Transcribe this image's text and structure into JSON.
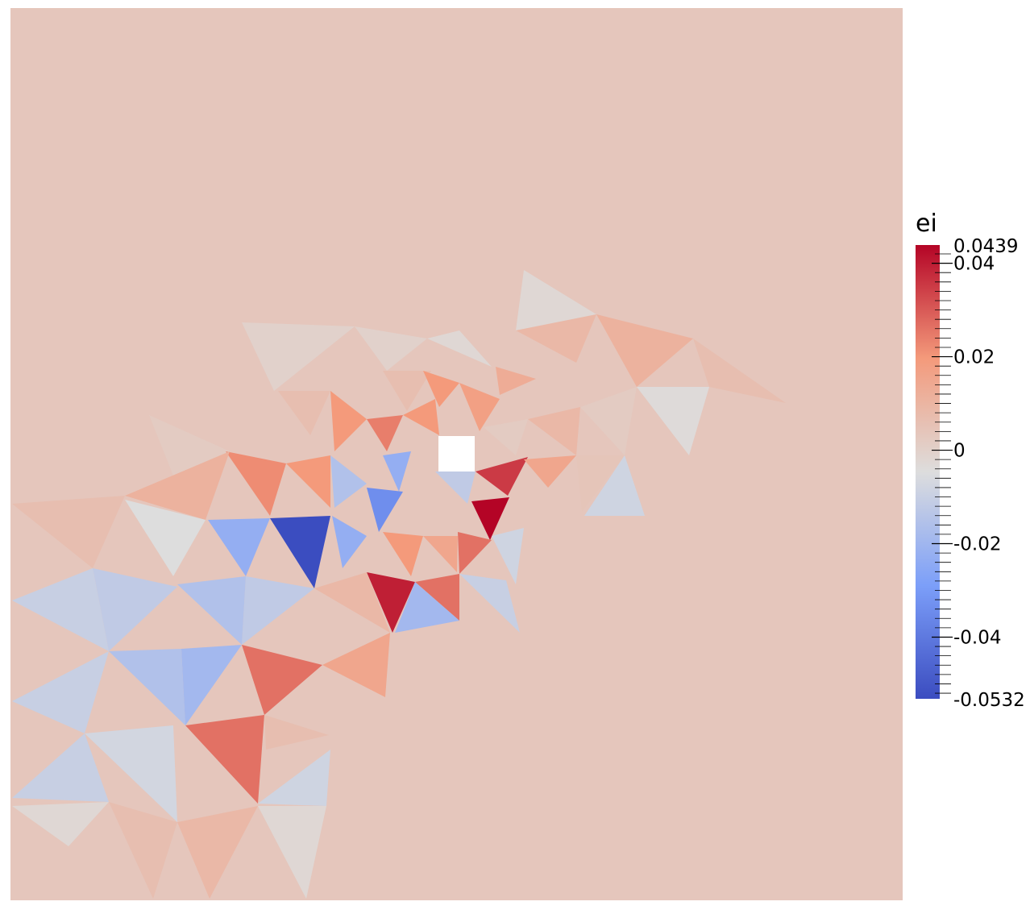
{
  "chart_data": {
    "type": "heatmap",
    "field_name": "ei",
    "colormap": "coolwarm",
    "range": [
      -0.0532,
      0.0439
    ],
    "colorbar": {
      "title": "ei",
      "placement": "right",
      "range_labels": {
        "max": "0.0439",
        "min": "-0.0532"
      },
      "ticks": [
        {
          "value": 0.04,
          "label": "0.04"
        },
        {
          "value": 0.02,
          "label": "0.02"
        },
        {
          "value": 0,
          "label": "0"
        },
        {
          "value": -0.02,
          "label": "-0.02"
        },
        {
          "value": -0.04,
          "label": "-0.04"
        }
      ]
    },
    "background_value": 0.0075,
    "hole_color": "#ffffff"
  }
}
